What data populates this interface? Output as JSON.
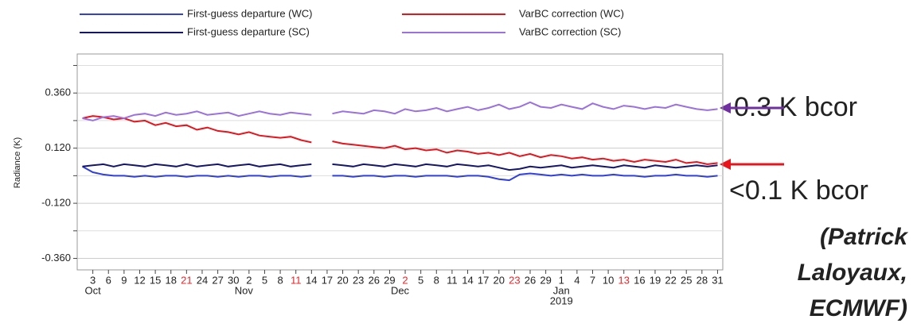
{
  "chart_data": {
    "type": "line",
    "y_label": "Radiance (K)",
    "x": [
      1,
      3,
      5,
      7,
      9,
      11,
      13,
      15,
      17,
      19,
      21,
      23,
      25,
      27,
      29,
      31,
      33,
      35,
      37,
      39,
      41,
      43,
      45,
      47,
      49,
      51,
      53,
      55,
      57,
      59,
      61,
      63,
      65,
      67,
      69,
      71,
      73,
      75,
      77,
      79,
      81,
      83,
      85,
      87,
      89,
      91,
      93,
      95,
      97,
      99,
      101,
      103,
      105,
      107,
      109,
      111,
      113,
      115,
      117,
      119,
      121,
      123
    ],
    "series": [
      {
        "name": "First-guess departure (WC)",
        "color": "#2f3fe0",
        "values": [
          0.04,
          0.015,
          0.005,
          0.0,
          0.0,
          -0.005,
          0.0,
          -0.005,
          0.0,
          0.0,
          -0.005,
          0.0,
          0.0,
          -0.005,
          0.0,
          -0.005,
          0.0,
          0.0,
          -0.005,
          0.0,
          0.0,
          -0.005,
          0.0,
          null,
          0.0,
          0.0,
          -0.005,
          0.0,
          0.0,
          -0.005,
          0.0,
          0.0,
          -0.005,
          0.0,
          0.0,
          0.0,
          -0.005,
          0.0,
          0.0,
          -0.005,
          -0.015,
          -0.02,
          0.005,
          0.01,
          0.005,
          0.0,
          0.005,
          0.0,
          0.005,
          0.0,
          0.0,
          0.005,
          0.0,
          0.0,
          -0.005,
          0.0,
          0.0,
          0.005,
          0.0,
          0.0,
          -0.005,
          0.0
        ]
      },
      {
        "name": "VarBC correction (WC)",
        "color": "#e8131b",
        "values": [
          0.25,
          0.26,
          0.255,
          0.245,
          0.25,
          0.235,
          0.24,
          0.22,
          0.23,
          0.215,
          0.22,
          0.2,
          0.21,
          0.195,
          0.19,
          0.18,
          0.19,
          0.175,
          0.17,
          0.165,
          0.17,
          0.155,
          0.145,
          null,
          0.15,
          0.14,
          0.135,
          0.13,
          0.125,
          0.12,
          0.13,
          0.115,
          0.12,
          0.11,
          0.115,
          0.1,
          0.11,
          0.105,
          0.095,
          0.1,
          0.09,
          0.1,
          0.085,
          0.095,
          0.08,
          0.09,
          0.085,
          0.075,
          0.08,
          0.07,
          0.075,
          0.065,
          0.07,
          0.06,
          0.07,
          0.065,
          0.06,
          0.07,
          0.055,
          0.06,
          0.05,
          0.055
        ]
      },
      {
        "name": "First-guess departure (SC)",
        "color": "#15166b",
        "values": [
          0.04,
          0.045,
          0.05,
          0.04,
          0.05,
          0.045,
          0.04,
          0.05,
          0.045,
          0.04,
          0.05,
          0.04,
          0.045,
          0.05,
          0.04,
          0.045,
          0.05,
          0.04,
          0.045,
          0.05,
          0.04,
          0.045,
          0.05,
          null,
          0.05,
          0.045,
          0.04,
          0.05,
          0.045,
          0.04,
          0.05,
          0.045,
          0.04,
          0.05,
          0.045,
          0.04,
          0.05,
          0.045,
          0.04,
          0.045,
          0.035,
          0.025,
          0.03,
          0.04,
          0.035,
          0.04,
          0.045,
          0.035,
          0.04,
          0.045,
          0.04,
          0.035,
          0.045,
          0.04,
          0.035,
          0.045,
          0.04,
          0.035,
          0.04,
          0.045,
          0.04,
          0.045
        ]
      },
      {
        "name": "VarBC correction (SC)",
        "color": "#9b70e0",
        "values": [
          0.25,
          0.24,
          0.255,
          0.26,
          0.25,
          0.265,
          0.27,
          0.26,
          0.275,
          0.265,
          0.27,
          0.28,
          0.265,
          0.27,
          0.275,
          0.26,
          0.27,
          0.28,
          0.27,
          0.265,
          0.275,
          0.27,
          0.265,
          null,
          0.27,
          0.28,
          0.275,
          0.27,
          0.285,
          0.28,
          0.27,
          0.29,
          0.28,
          0.285,
          0.295,
          0.28,
          0.29,
          0.3,
          0.285,
          0.295,
          0.31,
          0.29,
          0.3,
          0.32,
          0.3,
          0.295,
          0.31,
          0.3,
          0.29,
          0.315,
          0.3,
          0.29,
          0.305,
          0.3,
          0.29,
          0.3,
          0.295,
          0.31,
          0.3,
          0.29,
          0.285,
          0.29
        ]
      }
    ],
    "xlim": [
      0,
      124
    ],
    "ylim": [
      -0.41,
      0.53
    ],
    "yticks": [
      {
        "value": 0.36,
        "label": "0.360"
      },
      {
        "value": 0.12,
        "label": "0.120"
      },
      {
        "value": -0.12,
        "label": "-0.120"
      },
      {
        "value": -0.36,
        "label": "-0.360"
      }
    ],
    "minor_yticks": [
      0.48,
      0.24,
      0,
      -0.24
    ],
    "grid": true,
    "xticks": [
      {
        "value": 3,
        "label": "3"
      },
      {
        "value": 6,
        "label": "6"
      },
      {
        "value": 9,
        "label": "9"
      },
      {
        "value": 12,
        "label": "12"
      },
      {
        "value": 15,
        "label": "15"
      },
      {
        "value": 18,
        "label": "18"
      },
      {
        "value": 21,
        "label": "21",
        "color": "#e8262a"
      },
      {
        "value": 24,
        "label": "24"
      },
      {
        "value": 27,
        "label": "27"
      },
      {
        "value": 30,
        "label": "30"
      },
      {
        "value": 33,
        "label": "2"
      },
      {
        "value": 36,
        "label": "5"
      },
      {
        "value": 39,
        "label": "8"
      },
      {
        "value": 42,
        "label": "11",
        "color": "#e8262a"
      },
      {
        "value": 45,
        "label": "14"
      },
      {
        "value": 48,
        "label": "17"
      },
      {
        "value": 51,
        "label": "20"
      },
      {
        "value": 54,
        "label": "23"
      },
      {
        "value": 57,
        "label": "26"
      },
      {
        "value": 60,
        "label": "29"
      },
      {
        "value": 63,
        "label": "2",
        "color": "#e8262a"
      },
      {
        "value": 66,
        "label": "5"
      },
      {
        "value": 69,
        "label": "8"
      },
      {
        "value": 72,
        "label": "11"
      },
      {
        "value": 75,
        "label": "14"
      },
      {
        "value": 78,
        "label": "17"
      },
      {
        "value": 81,
        "label": "20"
      },
      {
        "value": 84,
        "label": "23",
        "color": "#e8262a"
      },
      {
        "value": 87,
        "label": "26"
      },
      {
        "value": 90,
        "label": "29"
      },
      {
        "value": 93,
        "label": "1"
      },
      {
        "value": 96,
        "label": "4"
      },
      {
        "value": 99,
        "label": "7"
      },
      {
        "value": 102,
        "label": "10"
      },
      {
        "value": 105,
        "label": "13",
        "color": "#e8262a"
      },
      {
        "value": 108,
        "label": "16"
      },
      {
        "value": 111,
        "label": "19"
      },
      {
        "value": 114,
        "label": "22"
      },
      {
        "value": 117,
        "label": "25"
      },
      {
        "value": 120,
        "label": "28"
      },
      {
        "value": 123,
        "label": "31"
      }
    ],
    "month_labels": [
      {
        "value": 3,
        "label": "Oct"
      },
      {
        "value": 32,
        "label": "Nov"
      },
      {
        "value": 62,
        "label": "Dec"
      },
      {
        "value": 93,
        "label": "Jan"
      }
    ],
    "year_label": {
      "value": 93,
      "label": "2019"
    },
    "annotations": [
      "0.3 K bcor",
      "<0.1 K bcor"
    ],
    "credit": [
      "(Patrick",
      "Laloyaux,",
      "ECMWF)"
    ]
  }
}
